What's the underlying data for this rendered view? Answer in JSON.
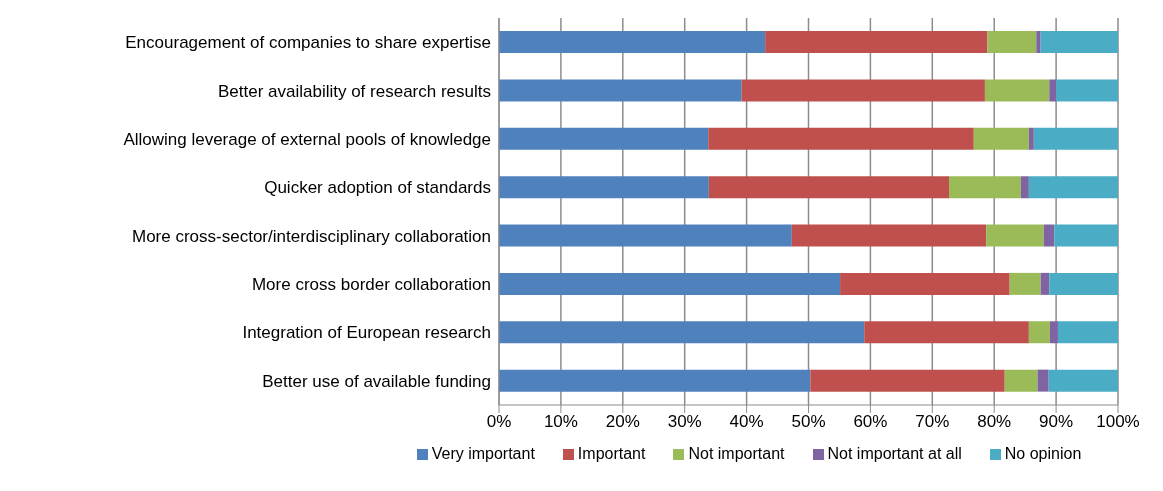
{
  "chart_data": {
    "type": "bar",
    "orientation": "horizontal",
    "stacked": true,
    "categories": [
      "Encouragement of companies to share expertise",
      "Better availability of research results",
      "Allowing leverage of external pools of knowledge",
      "Quicker adoption of standards",
      "More cross-sector/interdisciplinary collaboration",
      "More cross border collaboration",
      "Integration of European research",
      "Better use of available funding"
    ],
    "series": [
      {
        "name": "Very important",
        "color": "#4f81bd",
        "values": [
          43,
          39.2,
          33.8,
          33.9,
          47.3,
          55.1,
          59,
          50.3
        ]
      },
      {
        "name": "Important",
        "color": "#c0504d",
        "values": [
          35.9,
          39.3,
          42.9,
          38.8,
          31.4,
          27.4,
          26.6,
          31.4
        ]
      },
      {
        "name": "Not important",
        "color": "#9bbb59",
        "values": [
          7.9,
          10.4,
          8.9,
          11.6,
          9.3,
          5,
          3.4,
          5.3
        ]
      },
      {
        "name": "Not important at all",
        "color": "#8064a2",
        "values": [
          0.7,
          1.1,
          0.8,
          1.3,
          1.7,
          1.4,
          1.3,
          1.8
        ]
      },
      {
        "name": "No opinion",
        "color": "#4bacc6",
        "values": [
          12.5,
          10,
          13.6,
          14.4,
          10.3,
          11.1,
          9.7,
          11.2
        ]
      }
    ],
    "xlim": [
      0,
      100
    ],
    "xticks": [
      {
        "value": 0,
        "label": "0%"
      },
      {
        "value": 10,
        "label": "10%"
      },
      {
        "value": 20,
        "label": "20%"
      },
      {
        "value": 30,
        "label": "30%"
      },
      {
        "value": 40,
        "label": "40%"
      },
      {
        "value": 50,
        "label": "50%"
      },
      {
        "value": 60,
        "label": "60%"
      },
      {
        "value": 70,
        "label": "70%"
      },
      {
        "value": 80,
        "label": "80%"
      },
      {
        "value": 90,
        "label": "90%"
      },
      {
        "value": 100,
        "label": "100%"
      }
    ],
    "grid": "x",
    "legend": "bottom"
  }
}
